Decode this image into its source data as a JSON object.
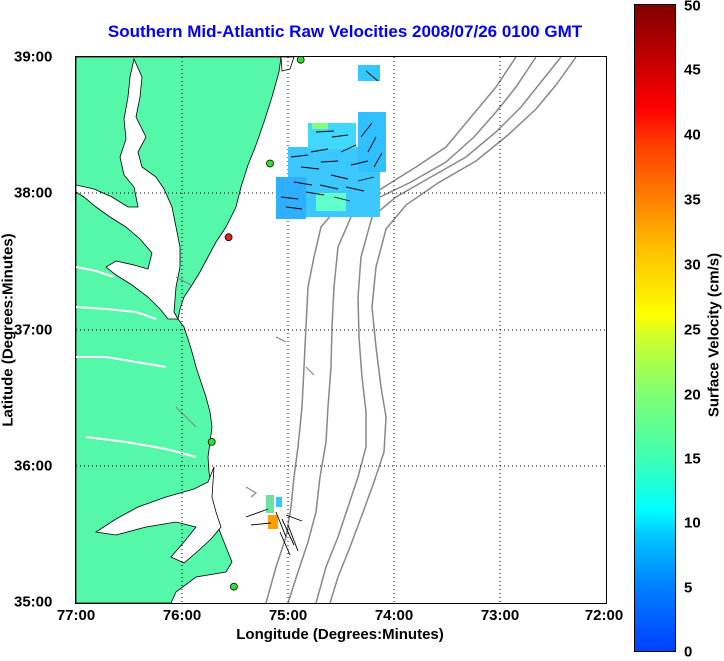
{
  "title": "Southern Mid-Atlantic Raw Velocities 2008/07/26 0100 GMT",
  "xlabel": "Longitude (Degrees:Minutes)",
  "ylabel": "Latitude (Degrees:Minutes)",
  "x_ticks": [
    "77:00",
    "76:00",
    "75:00",
    "74:00",
    "73:00",
    "72:00"
  ],
  "y_ticks": [
    "39:00",
    "38:00",
    "37:00",
    "36:00",
    "35:00"
  ],
  "colorbar": {
    "label": "Surface Velocity (cm/s)",
    "ticks": [
      "50",
      "45",
      "40",
      "35",
      "30",
      "25",
      "20",
      "15",
      "10",
      "5",
      "0"
    ],
    "range": [
      0,
      50
    ]
  },
  "colors": {
    "land": "#55f7a8",
    "title": "#0000ff",
    "station_green": "#33dd33",
    "station_red": "#dd2222"
  },
  "stations": [
    {
      "name": "station",
      "lon": -74.88,
      "lat": 38.98,
      "color": "green"
    },
    {
      "name": "station",
      "lon": -75.17,
      "lat": 38.22,
      "color": "green"
    },
    {
      "name": "station",
      "lon": -75.56,
      "lat": 37.68,
      "color": "red"
    },
    {
      "name": "station",
      "lon": -75.72,
      "lat": 36.18,
      "color": "green"
    },
    {
      "name": "station",
      "lon": -75.51,
      "lat": 35.12,
      "color": "green"
    }
  ],
  "grid": true
}
